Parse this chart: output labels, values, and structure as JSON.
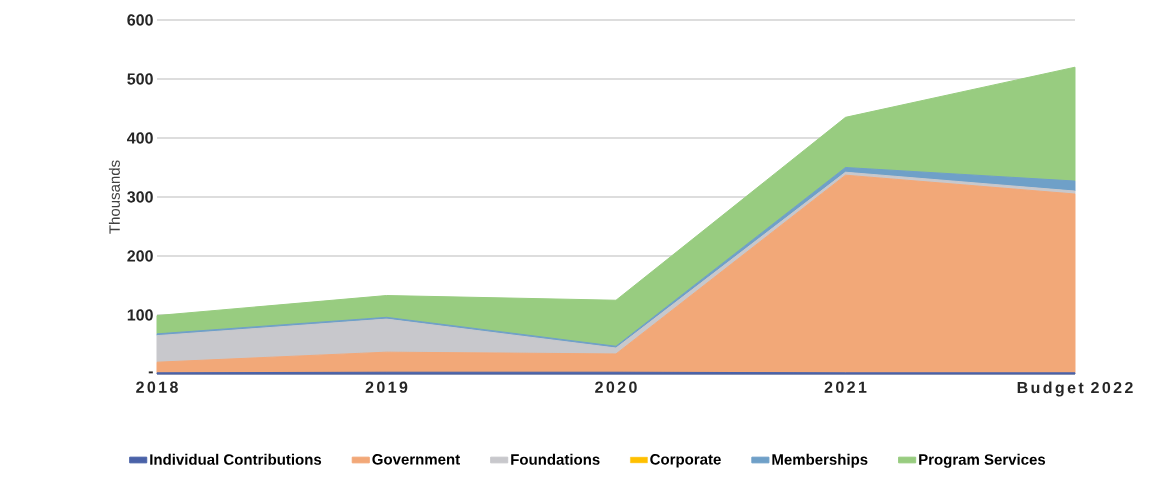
{
  "chart_data": {
    "type": "area",
    "stacked": true,
    "ylabel": "Thousands",
    "categories": [
      "2018",
      "2019",
      "2020",
      "2021",
      "Budget 2022"
    ],
    "series": [
      {
        "name": "Individual Contributions",
        "color": "#4a62a8",
        "values": [
          2,
          3,
          3,
          2,
          2
        ]
      },
      {
        "name": "Government",
        "color": "#f2a878",
        "values": [
          18,
          34,
          31,
          335,
          303
        ]
      },
      {
        "name": "Foundations",
        "color": "#c8c8cc",
        "values": [
          45,
          56,
          10,
          5,
          5
        ]
      },
      {
        "name": "Corporate",
        "color": "#ffc000",
        "values": [
          null,
          null,
          null,
          null,
          null
        ]
      },
      {
        "name": "Memberships",
        "color": "#6fa0c8",
        "values": [
          3,
          3,
          3,
          8,
          17
        ]
      },
      {
        "name": "Program Services",
        "color": "#98cc80",
        "values": [
          31,
          37,
          78,
          85,
          193
        ]
      }
    ],
    "ylim": [
      0,
      600
    ],
    "yticks": [
      {
        "value": 0,
        "label": "-"
      },
      100,
      200,
      300,
      400,
      500,
      600
    ],
    "grid": "y",
    "legend": "bottom"
  }
}
